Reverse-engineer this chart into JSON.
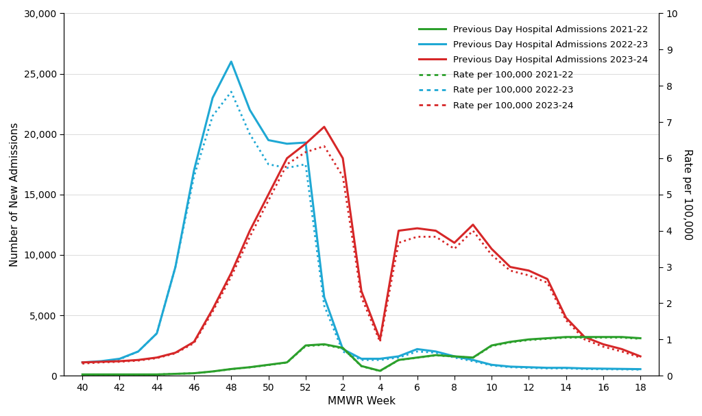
{
  "x_labels": [
    "40",
    "42",
    "44",
    "46",
    "48",
    "50",
    "52",
    "2",
    "4",
    "6",
    "8",
    "10",
    "12",
    "14",
    "16",
    "18"
  ],
  "x_positions": [
    40,
    42,
    44,
    46,
    48,
    50,
    52,
    54,
    56,
    58,
    60,
    62,
    64,
    66,
    68,
    70
  ],
  "blue_solid": {
    "x": [
      40,
      41,
      42,
      43,
      44,
      45,
      46,
      47,
      48,
      49,
      50,
      51,
      52,
      53,
      54,
      55,
      56,
      57,
      58,
      59,
      60,
      61,
      62,
      63,
      64,
      65,
      66,
      67,
      68,
      69,
      70
    ],
    "y": [
      1100,
      1200,
      1400,
      2000,
      3500,
      9000,
      17000,
      23000,
      26000,
      22000,
      19500,
      19200,
      19300,
      6500,
      2200,
      1400,
      1400,
      1600,
      2200,
      2000,
      1600,
      1300,
      900,
      750,
      700,
      650,
      650,
      600,
      580,
      560,
      540
    ]
  },
  "blue_dotted": {
    "x": [
      40,
      41,
      42,
      43,
      44,
      45,
      46,
      47,
      48,
      49,
      50,
      51,
      52,
      53,
      54,
      55,
      56,
      57,
      58,
      59,
      60,
      61,
      62,
      63,
      64,
      65,
      66,
      67,
      68,
      69,
      70
    ],
    "y": [
      1050,
      1150,
      1350,
      2000,
      3500,
      9000,
      16500,
      21500,
      23500,
      20000,
      17500,
      17200,
      17500,
      5800,
      2000,
      1300,
      1300,
      1500,
      2000,
      1900,
      1500,
      1200,
      850,
      700,
      650,
      600,
      600,
      550,
      530,
      520,
      500
    ]
  },
  "red_solid": {
    "x": [
      40,
      41,
      42,
      43,
      44,
      45,
      46,
      47,
      48,
      49,
      50,
      51,
      52,
      53,
      54,
      55,
      56,
      57,
      58,
      59,
      60,
      61,
      62,
      63,
      64,
      65,
      66,
      67,
      68,
      69,
      70
    ],
    "y": [
      1100,
      1150,
      1200,
      1300,
      1500,
      1900,
      2800,
      5500,
      8500,
      12000,
      15000,
      18000,
      19200,
      20600,
      18000,
      7000,
      3000,
      12000,
      12200,
      12000,
      11000,
      12500,
      10500,
      9000,
      8700,
      8000,
      4800,
      3200,
      2600,
      2200,
      1600
    ]
  },
  "red_dotted": {
    "x": [
      40,
      41,
      42,
      43,
      44,
      45,
      46,
      47,
      48,
      49,
      50,
      51,
      52,
      53,
      54,
      55,
      56,
      57,
      58,
      59,
      60,
      61,
      62,
      63,
      64,
      65,
      66,
      67,
      68,
      69,
      70
    ],
    "y": [
      1000,
      1100,
      1150,
      1250,
      1450,
      1850,
      2700,
      5300,
      8200,
      11500,
      14500,
      17500,
      18500,
      19000,
      16500,
      6500,
      2800,
      11000,
      11500,
      11500,
      10500,
      12000,
      10000,
      8700,
      8300,
      7700,
      4600,
      3000,
      2400,
      2000,
      1500
    ]
  },
  "green_solid": {
    "x": [
      40,
      41,
      42,
      43,
      44,
      45,
      46,
      47,
      48,
      49,
      50,
      51,
      52,
      53,
      54,
      55,
      56,
      57,
      58,
      59,
      60,
      61,
      62,
      63,
      64,
      65,
      66,
      67,
      68,
      69,
      70
    ],
    "y": [
      100,
      100,
      100,
      100,
      100,
      150,
      200,
      350,
      550,
      700,
      900,
      1100,
      2500,
      2600,
      2300,
      800,
      400,
      1300,
      1500,
      1700,
      1600,
      1500,
      2500,
      2800,
      3000,
      3100,
      3200,
      3200,
      3200,
      3200,
      3100
    ]
  },
  "green_dotted": {
    "x": [
      40,
      41,
      42,
      43,
      44,
      45,
      46,
      47,
      48,
      49,
      50,
      51,
      52,
      53,
      54,
      55,
      56,
      57,
      58,
      59,
      60,
      61,
      62,
      63,
      64,
      65,
      66,
      67,
      68,
      69,
      70
    ],
    "y": [
      100,
      100,
      100,
      100,
      100,
      150,
      200,
      340,
      540,
      690,
      880,
      1080,
      2450,
      2550,
      2250,
      780,
      380,
      1280,
      1480,
      1680,
      1580,
      1480,
      2450,
      2750,
      2950,
      3050,
      3150,
      3150,
      3150,
      3150,
      3050
    ]
  },
  "green_color": "#2ca02c",
  "blue_color": "#1fa8d4",
  "red_color": "#d62728",
  "ylabel_left": "Number of New Admissions",
  "ylabel_right": "Rate per 100,000",
  "xlabel": "MMWR Week",
  "ylim_left": [
    0,
    30000
  ],
  "ylim_right": [
    0,
    10
  ],
  "yticks_left": [
    0,
    5000,
    10000,
    15000,
    20000,
    25000,
    30000
  ],
  "ytick_labels_left": [
    "0",
    "5,000",
    "10,000",
    "15,000",
    "20,000",
    "25,000",
    "30,000"
  ],
  "yticks_right": [
    0,
    1,
    2,
    3,
    4,
    5,
    6,
    7,
    8,
    9,
    10
  ],
  "legend_entries": [
    {
      "label": "Previous Day Hospital Admissions 2021-22",
      "color": "#2ca02c",
      "linestyle": "solid"
    },
    {
      "label": "Previous Day Hospital Admissions 2022-23",
      "color": "#1fa8d4",
      "linestyle": "solid"
    },
    {
      "label": "Previous Day Hospital Admissions 2023-24",
      "color": "#d62728",
      "linestyle": "solid"
    },
    {
      "label": "Rate per 100,000 2021-22",
      "color": "#2ca02c",
      "linestyle": "dotted"
    },
    {
      "label": "Rate per 100,000 2022-23",
      "color": "#1fa8d4",
      "linestyle": "dotted"
    },
    {
      "label": "Rate per 100,000 2023-24",
      "color": "#d62728",
      "linestyle": "dotted"
    }
  ],
  "background_color": "#ffffff",
  "linewidth": 2.2,
  "dotted_linewidth": 2.0,
  "legend_fontsize": 9.5,
  "axis_fontsize": 10,
  "label_fontsize": 11
}
